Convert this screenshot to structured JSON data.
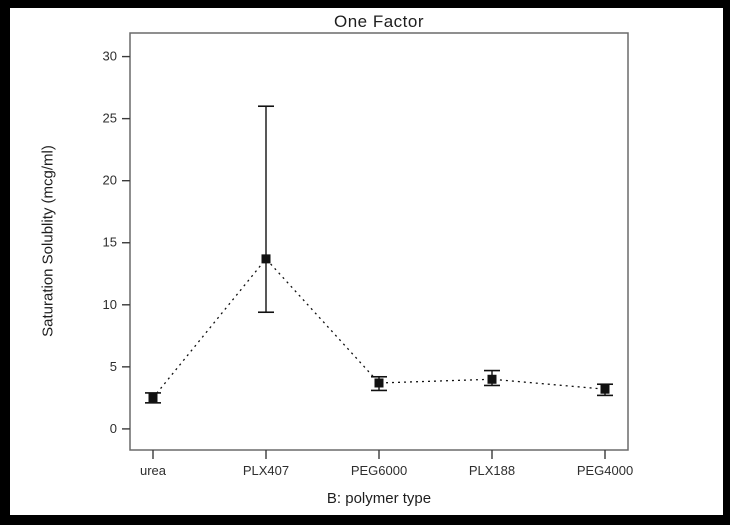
{
  "figure": {
    "border_color": "#000000",
    "canvas_color": "#ffffff"
  },
  "chart_data": {
    "type": "line",
    "title": "One Factor",
    "xlabel": "B: polymer type",
    "ylabel": "Saturation Solublity (mcg/ml)",
    "categories": [
      "urea",
      "PLX407",
      "PEG6000",
      "PLX188",
      "PEG4000"
    ],
    "series": [
      {
        "name": "Saturation Solubility",
        "values": [
          2.5,
          13.7,
          3.7,
          4.0,
          3.2
        ],
        "error_low": [
          2.1,
          9.4,
          3.1,
          3.5,
          2.7
        ],
        "error_high": [
          2.9,
          26.0,
          4.2,
          4.7,
          3.6
        ]
      }
    ],
    "yticks": [
      0,
      5,
      10,
      15,
      20,
      25,
      30
    ],
    "ylim": [
      -1.7,
      31.9
    ],
    "grid": false,
    "legend": false,
    "marker": "square",
    "marker_size": 9,
    "line_style": "dotted",
    "colors": {
      "data": "#111111",
      "frame": "#6a6a6a",
      "tick": "#3a3a3a",
      "text": "#2e2e2e"
    }
  }
}
